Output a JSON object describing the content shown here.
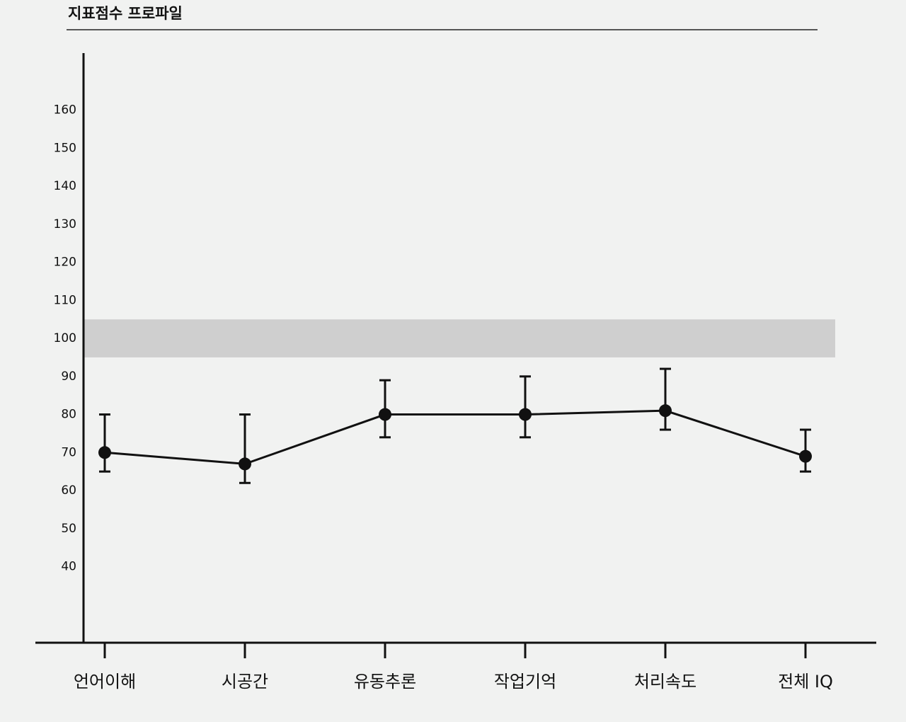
{
  "chart_data": {
    "type": "line",
    "title": "지표점수 프로파일",
    "categories": [
      "언어이해",
      "시공간",
      "유동추론",
      "작업기억",
      "처리속도",
      "전체 IQ"
    ],
    "values": [
      70,
      67,
      80,
      80,
      81,
      69
    ],
    "error_low": [
      65,
      62,
      74,
      74,
      76,
      65
    ],
    "error_high": [
      80,
      80,
      89,
      90,
      92,
      76
    ],
    "ylim": [
      20,
      175
    ],
    "yticks": [
      40,
      50,
      60,
      70,
      80,
      90,
      100,
      110,
      120,
      130,
      140,
      150,
      160
    ],
    "band": [
      95,
      105
    ],
    "band_color": "#cfcfcf",
    "color": "#111111",
    "grid": false
  }
}
